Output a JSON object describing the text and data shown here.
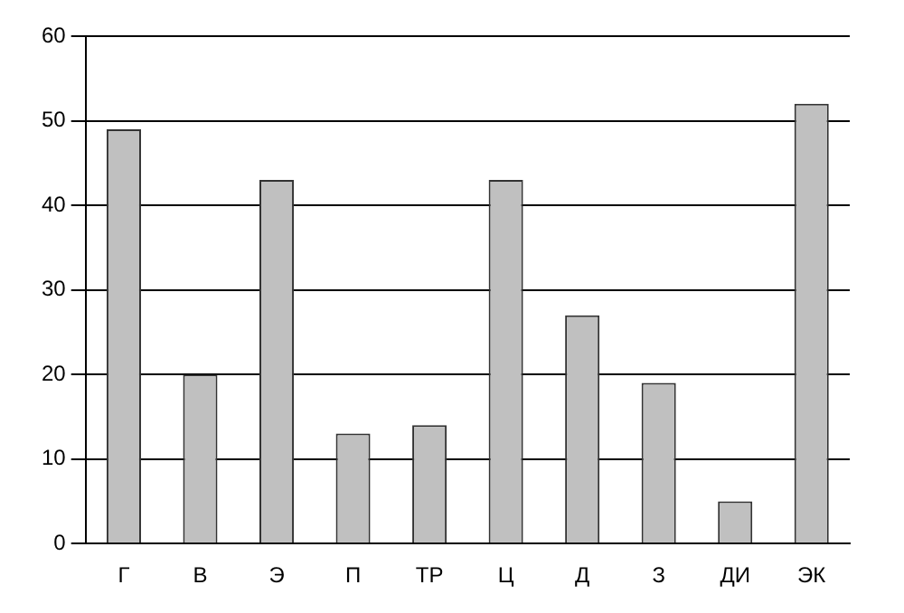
{
  "chart_data": {
    "type": "bar",
    "categories": [
      "Г",
      "В",
      "Э",
      "П",
      "ТР",
      "Ц",
      "Д",
      "З",
      "ДИ",
      "ЭК"
    ],
    "values": [
      49,
      20,
      43,
      13,
      14,
      43,
      27,
      19,
      5,
      52
    ],
    "color": "#c0c0c0",
    "ylim": [
      0,
      60
    ],
    "yticks": [
      0,
      10,
      20,
      30,
      40,
      50,
      60
    ],
    "grid": "y",
    "legend": false
  }
}
